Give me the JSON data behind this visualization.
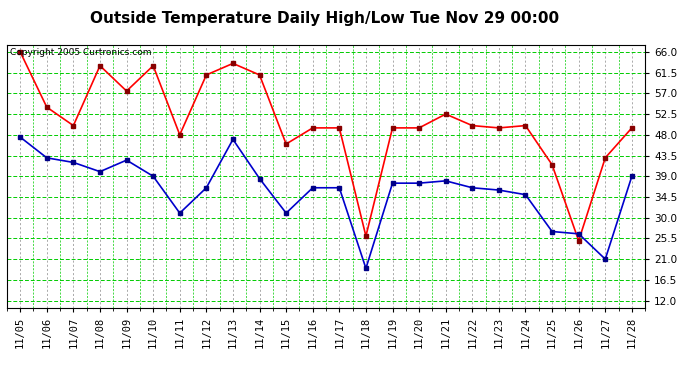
{
  "title": "Outside Temperature Daily High/Low Tue Nov 29 00:00",
  "copyright": "Copyright 2005 Curtronics.com",
  "x_labels": [
    "11/05",
    "11/06",
    "11/07",
    "11/08",
    "11/09",
    "11/10",
    "11/11",
    "11/12",
    "11/13",
    "11/14",
    "11/15",
    "11/16",
    "11/17",
    "11/18",
    "11/19",
    "11/20",
    "11/21",
    "11/22",
    "11/23",
    "11/24",
    "11/25",
    "11/26",
    "11/27",
    "11/28"
  ],
  "high_temps": [
    66.0,
    54.0,
    50.0,
    63.0,
    57.5,
    63.0,
    48.0,
    61.0,
    63.5,
    61.0,
    46.0,
    49.5,
    49.5,
    26.0,
    49.5,
    49.5,
    52.5,
    50.0,
    49.5,
    50.0,
    41.5,
    25.0,
    43.0,
    49.5
  ],
  "low_temps": [
    47.5,
    43.0,
    42.0,
    40.0,
    42.5,
    39.0,
    31.0,
    36.5,
    47.0,
    38.5,
    31.0,
    36.5,
    36.5,
    19.0,
    37.5,
    37.5,
    38.0,
    36.5,
    36.0,
    35.0,
    27.0,
    26.5,
    21.0,
    39.0
  ],
  "high_color": "#ff0000",
  "low_color": "#0000cc",
  "marker_color_high": "#880000",
  "marker_color_low": "#000088",
  "bg_color": "#ffffff",
  "plot_bg_color": "#ffffff",
  "grid_color": "#00cc00",
  "grid_minor_color": "#00cc00",
  "yticks": [
    12.0,
    16.5,
    21.0,
    25.5,
    30.0,
    34.5,
    39.0,
    43.5,
    48.0,
    52.5,
    57.0,
    61.5,
    66.0
  ],
  "ymin": 10.5,
  "ymax": 67.5,
  "title_fontsize": 11,
  "copyright_fontsize": 6.5,
  "tick_fontsize": 7.5
}
